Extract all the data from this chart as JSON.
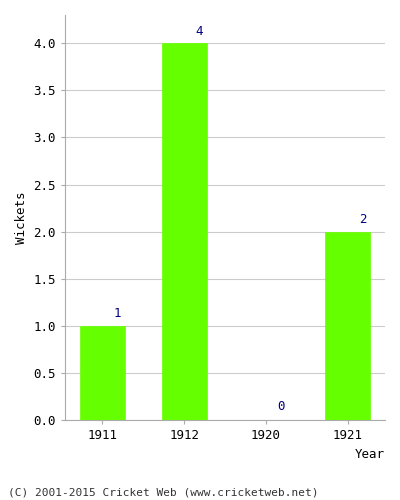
{
  "categories": [
    "1911",
    "1912",
    "1920",
    "1921"
  ],
  "values": [
    1,
    4,
    0,
    2
  ],
  "bar_color": "#66ff00",
  "bar_edgecolor": "#66ff00",
  "ylabel": "Wickets",
  "xlabel_text": "Year",
  "ylim": [
    0,
    4.3
  ],
  "yticks": [
    0.0,
    0.5,
    1.0,
    1.5,
    2.0,
    2.5,
    3.0,
    3.5,
    4.0
  ],
  "label_color": "#000080",
  "label_fontsize": 9,
  "axis_label_fontsize": 9,
  "tick_fontsize": 9,
  "footer_text": "(C) 2001-2015 Cricket Web (www.cricketweb.net)",
  "footer_fontsize": 8,
  "background_color": "#ffffff",
  "grid_color": "#cccccc",
  "bar_width": 0.55
}
